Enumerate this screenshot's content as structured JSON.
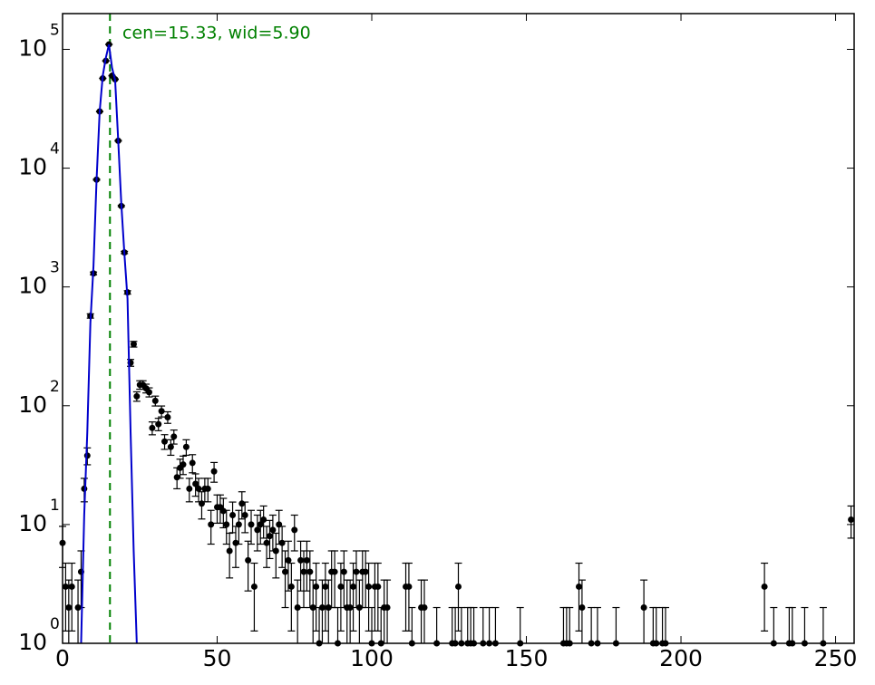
{
  "chart_data": {
    "type": "errorbar",
    "annotation": "cen=15.33, wid=5.90",
    "vline": 15.33,
    "vline_color": "#008000",
    "xlim": [
      0,
      256
    ],
    "ylim": [
      1,
      200000
    ],
    "log_y": true,
    "xticks": [
      0,
      50,
      100,
      150,
      200,
      250
    ],
    "yticks": [
      {
        "value": 1,
        "label": "10",
        "exponent": "0"
      },
      {
        "value": 10,
        "label": "10",
        "exponent": "1"
      },
      {
        "value": 100,
        "label": "10",
        "exponent": "2"
      },
      {
        "value": 1000,
        "label": "10",
        "exponent": "3"
      },
      {
        "value": 10000,
        "label": "10",
        "exponent": "4"
      },
      {
        "value": 100000,
        "label": "10",
        "exponent": "5"
      }
    ],
    "series": [
      {
        "kind": "points",
        "color": "#000000",
        "x": [
          0,
          1,
          2,
          3,
          5,
          6,
          7,
          8,
          9,
          10,
          11,
          12,
          13,
          14,
          15,
          16,
          17,
          18,
          19,
          20,
          21,
          22,
          23,
          24,
          25,
          26,
          27,
          28,
          29,
          30,
          31,
          32,
          33,
          34,
          35,
          36,
          37,
          38,
          39,
          40,
          41,
          42,
          43,
          44,
          45,
          46,
          47,
          48,
          49,
          50,
          51,
          52,
          53,
          54,
          55,
          56,
          57,
          58,
          59,
          60,
          61,
          62,
          63,
          64,
          65,
          66,
          67,
          68,
          69,
          70,
          71,
          72,
          73,
          74,
          75,
          76,
          77,
          78,
          79,
          80,
          81,
          82,
          83,
          84,
          85,
          86,
          87,
          88,
          89,
          90,
          91,
          92,
          93,
          94,
          95,
          96,
          97,
          98,
          99,
          100,
          101,
          102,
          103,
          104,
          105,
          111,
          112,
          113,
          116,
          117,
          121,
          126,
          127,
          128,
          129,
          131,
          132,
          133,
          136,
          138,
          140,
          148,
          162,
          163,
          164,
          167,
          168,
          171,
          173,
          179,
          188,
          191,
          192,
          194,
          195,
          227,
          230,
          235,
          236,
          240,
          246,
          255
        ],
        "values": [
          7,
          3,
          2,
          3,
          2,
          4,
          20,
          38,
          570,
          1300,
          8000,
          30000,
          57000,
          80000,
          110000,
          60000,
          56000,
          17000,
          4800,
          1950,
          900,
          230,
          330,
          120,
          150,
          150,
          140,
          130,
          65,
          110,
          70,
          90,
          50,
          80,
          45,
          55,
          25,
          30,
          32,
          45,
          20,
          33,
          22,
          20,
          15,
          20,
          20,
          10,
          28,
          14,
          14,
          13,
          10,
          6,
          12,
          7,
          10,
          15,
          12,
          5,
          10,
          3,
          9,
          10,
          11,
          7,
          8,
          9,
          6,
          10,
          7,
          4,
          5,
          3,
          9,
          2,
          5,
          4,
          5,
          4,
          2,
          3,
          1,
          2,
          3,
          2,
          4,
          4,
          1,
          3,
          4,
          2,
          2,
          3,
          4,
          2,
          4,
          4,
          3,
          1,
          3,
          3,
          1,
          2,
          2,
          3,
          3,
          1,
          2,
          2,
          1,
          1,
          1,
          3,
          1,
          1,
          1,
          1,
          1,
          1,
          1,
          1,
          1,
          1,
          1,
          3,
          2,
          1,
          1,
          1,
          2,
          1,
          1,
          1,
          1,
          3,
          1,
          1,
          1,
          1,
          1,
          11
        ],
        "errors": [
          2.65,
          1.73,
          1.41,
          1.73,
          1.41,
          2,
          4.47,
          6.16,
          23.87,
          36.06,
          89.44,
          173.21,
          238.75,
          282.84,
          331.66,
          244.95,
          236.64,
          130.38,
          69.28,
          44.16,
          30,
          15.17,
          18.17,
          10.95,
          12.25,
          12.25,
          11.83,
          11.4,
          8.06,
          10.49,
          8.37,
          9.49,
          7.07,
          8.94,
          6.71,
          7.42,
          5,
          5.48,
          5.66,
          6.71,
          4.47,
          5.74,
          4.69,
          4.47,
          3.87,
          4.47,
          4.47,
          3.16,
          5.29,
          3.74,
          3.74,
          3.61,
          3.16,
          2.45,
          3.46,
          2.65,
          3.16,
          3.87,
          3.46,
          2.24,
          3.16,
          1.73,
          3,
          3.16,
          3.32,
          2.65,
          2.83,
          3,
          2.45,
          3.16,
          2.65,
          2,
          2.24,
          1.73,
          3,
          1.41,
          2.24,
          2,
          2.24,
          2,
          1.41,
          1.73,
          1,
          1.41,
          1.73,
          1.41,
          2,
          2,
          1,
          1.73,
          2,
          1.41,
          1.41,
          1.73,
          2,
          1.41,
          2,
          2,
          1.73,
          1,
          1.73,
          1.73,
          1,
          1.41,
          1.41,
          1.73,
          1.73,
          1,
          1.41,
          1.41,
          1,
          1,
          1,
          1.73,
          1,
          1,
          1,
          1,
          1,
          1,
          1,
          1,
          1,
          1,
          1,
          1.73,
          1.41,
          1,
          1,
          1,
          1.41,
          1,
          1,
          1,
          1,
          1.73,
          1,
          1,
          1,
          1,
          1,
          3.32
        ]
      },
      {
        "kind": "line",
        "color": "#0000cc",
        "x": [
          6,
          7,
          8,
          9,
          10,
          11,
          12,
          13,
          14,
          15,
          16,
          17,
          18,
          19,
          20,
          21,
          22,
          23,
          24
        ],
        "values": [
          1,
          12,
          60,
          500,
          1500,
          8000,
          30000,
          60000,
          85000,
          110000,
          70000,
          55000,
          17000,
          5000,
          1900,
          800,
          60,
          6,
          1
        ]
      }
    ]
  }
}
